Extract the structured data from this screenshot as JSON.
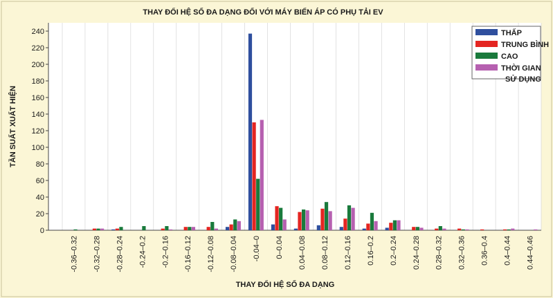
{
  "chart_data": {
    "type": "bar",
    "title": "THAY ĐỔI HỆ SỐ ĐA DẠNG ĐỐI VỚI MÁY BIẾN ÁP CÓ PHỤ TẢI EV",
    "xlabel": "THAY ĐỔI HỆ SỐ ĐA DẠNG",
    "ylabel": "TẦN SUẤT XUẤT HIỆN",
    "ylim": [
      0,
      250
    ],
    "yticks": [
      0,
      20,
      40,
      60,
      80,
      100,
      120,
      140,
      160,
      180,
      200,
      220,
      240
    ],
    "grid": "vertical",
    "legend_position": "top-right",
    "categories": [
      "-0.36–0.32",
      "-0.32–0.28",
      "-0.28–0.24",
      "-0.24–0.2",
      "-0.2–0.16",
      "-0.16–0.12",
      "-0.12–0.08",
      "-0.08–0.04",
      "-0.04–0",
      "0–0.04",
      "0.04–0.08",
      "0.08–0.12",
      "0.12–0.16",
      "0.16–0.2",
      "0.2–0.24",
      "0.24–0.28",
      "0.28–0.32",
      "0.32–0.36",
      "0.36–0.4",
      "0.4–0.44",
      "0.44–0.46"
    ],
    "series": [
      {
        "name": "THẤP",
        "color": "#2f4f9e",
        "values": [
          0,
          0,
          1,
          0,
          0,
          0,
          0,
          4,
          237,
          7,
          2,
          6,
          4,
          2,
          3,
          0,
          0,
          0,
          0,
          0,
          0
        ]
      },
      {
        "name": "TRUNG BÌNH",
        "color": "#e42521",
        "values": [
          0,
          2,
          2,
          0,
          2,
          4,
          4,
          7,
          130,
          29,
          22,
          26,
          14,
          8,
          9,
          4,
          2,
          2,
          1,
          1,
          0
        ]
      },
      {
        "name": "CAO",
        "color": "#1a7a3c",
        "values": [
          1,
          2,
          4,
          5,
          5,
          4,
          10,
          13,
          62,
          27,
          25,
          34,
          30,
          21,
          12,
          4,
          5,
          1,
          0,
          1,
          0
        ]
      },
      {
        "name": "THỜI GIAN SỬ DỤNG",
        "color": "#b660b0",
        "values": [
          0,
          2,
          0,
          0,
          1,
          4,
          2,
          11,
          133,
          13,
          24,
          23,
          27,
          11,
          12,
          3,
          2,
          1,
          0,
          2,
          1
        ]
      }
    ],
    "legend_lines": [
      [
        "THẤP"
      ],
      [
        "TRUNG BÌNH"
      ],
      [
        "CAO"
      ],
      [
        "THỜI GIAN",
        "SỬ DỤNG"
      ]
    ]
  }
}
